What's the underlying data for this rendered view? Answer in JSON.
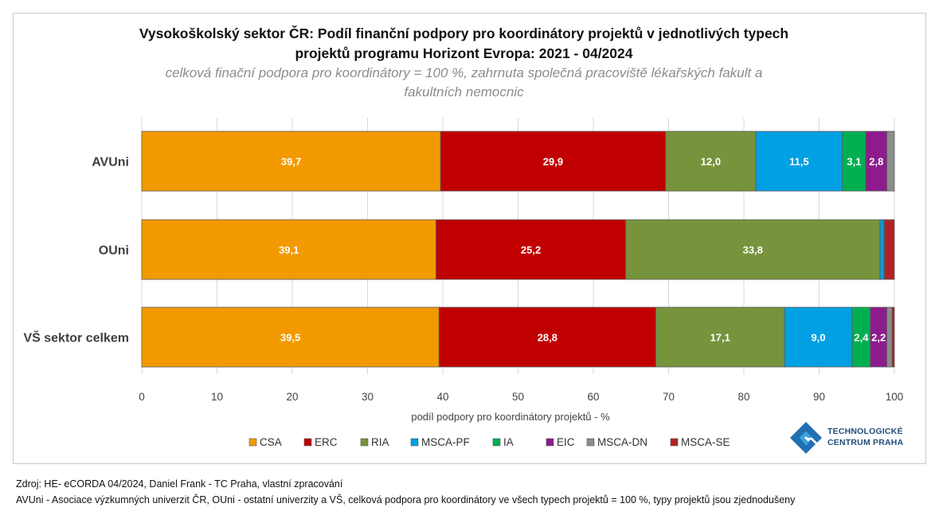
{
  "chart_data": {
    "type": "bar",
    "orientation": "horizontal",
    "stacked": true,
    "title": "Vysokoškolský sektor ČR: Podíl finanční podpory pro koordinátory projektů v jednotlivých typech projektů programu Horizont Evropa: 2021 - 04/2024",
    "title_lines": [
      "Vysokoškolský sektor ČR: Podíl finanční podpory pro koordinátory projektů v jednotlivých typech",
      "projektů programu Horizont Evropa: 2021 - 04/2024"
    ],
    "subtitle": "celková finační podpora pro koordinátory = 100 %, zahrnuta společná pracoviště lékařských fakult a fakultních nemocnic",
    "subtitle_lines": [
      "celková finační podpora pro koordinátory = 100 %, zahrnuta společná pracoviště lékařských fakult a",
      "fakultních nemocnic"
    ],
    "categories": [
      "AVUni",
      "OUni",
      "VŠ sektor celkem"
    ],
    "xlabel": "podíl podpory pro koordinátory projektů - %",
    "ylabel": "",
    "xlim": [
      0,
      100
    ],
    "xticks": [
      0,
      10,
      20,
      30,
      40,
      50,
      60,
      70,
      80,
      90,
      100
    ],
    "grid": "vertical",
    "legend_position": "bottom",
    "series": [
      {
        "name": "CSA",
        "color": "#f29a00",
        "values": [
          39.7,
          39.1,
          39.5
        ],
        "labels": [
          "39,7",
          "39,1",
          "39,5"
        ]
      },
      {
        "name": "ERC",
        "color": "#c00000",
        "values": [
          29.9,
          25.2,
          28.8
        ],
        "labels": [
          "29,9",
          "25,2",
          "28,8"
        ]
      },
      {
        "name": "RIA",
        "color": "#77933c",
        "values": [
          12.0,
          33.8,
          17.1
        ],
        "labels": [
          "12,0",
          "33,8",
          "17,1"
        ]
      },
      {
        "name": "MSCA-PF",
        "color": "#00a0e3",
        "values": [
          11.5,
          0.5,
          9.0
        ],
        "labels": [
          "11,5",
          "",
          "9,0"
        ]
      },
      {
        "name": "IA",
        "color": "#00b050",
        "values": [
          3.1,
          0.0,
          2.4
        ],
        "labels": [
          "3,1",
          "",
          "2,4"
        ]
      },
      {
        "name": "EIC",
        "color": "#8e1b8e",
        "values": [
          2.8,
          0.0,
          2.2
        ],
        "labels": [
          "2,8",
          "",
          "2,2"
        ]
      },
      {
        "name": "MSCA-DN",
        "color": "#8c8c8c",
        "values": [
          1.0,
          0.1,
          0.7
        ],
        "labels": [
          "",
          "",
          ""
        ]
      },
      {
        "name": "MSCA-SE",
        "color": "#b22222",
        "values": [
          0.0,
          1.3,
          0.3
        ],
        "labels": [
          "",
          "",
          ""
        ]
      }
    ]
  },
  "logo": {
    "line1": "TECHNOLOGICKÉ",
    "line2": "CENTRUM PRAHA"
  },
  "footer": {
    "source": "Zdroj: HE- eCORDA 04/2024, Daniel Frank - TC Praha, vlastní zpracování",
    "note": "AVUni - Asociace výzkumných univerzit ČR, OUni - ostatní univerzity a VŠ, celková podpora pro koordinátory ve všech typech projektů = 100 %, typy projektů jsou zjednodušeny"
  }
}
